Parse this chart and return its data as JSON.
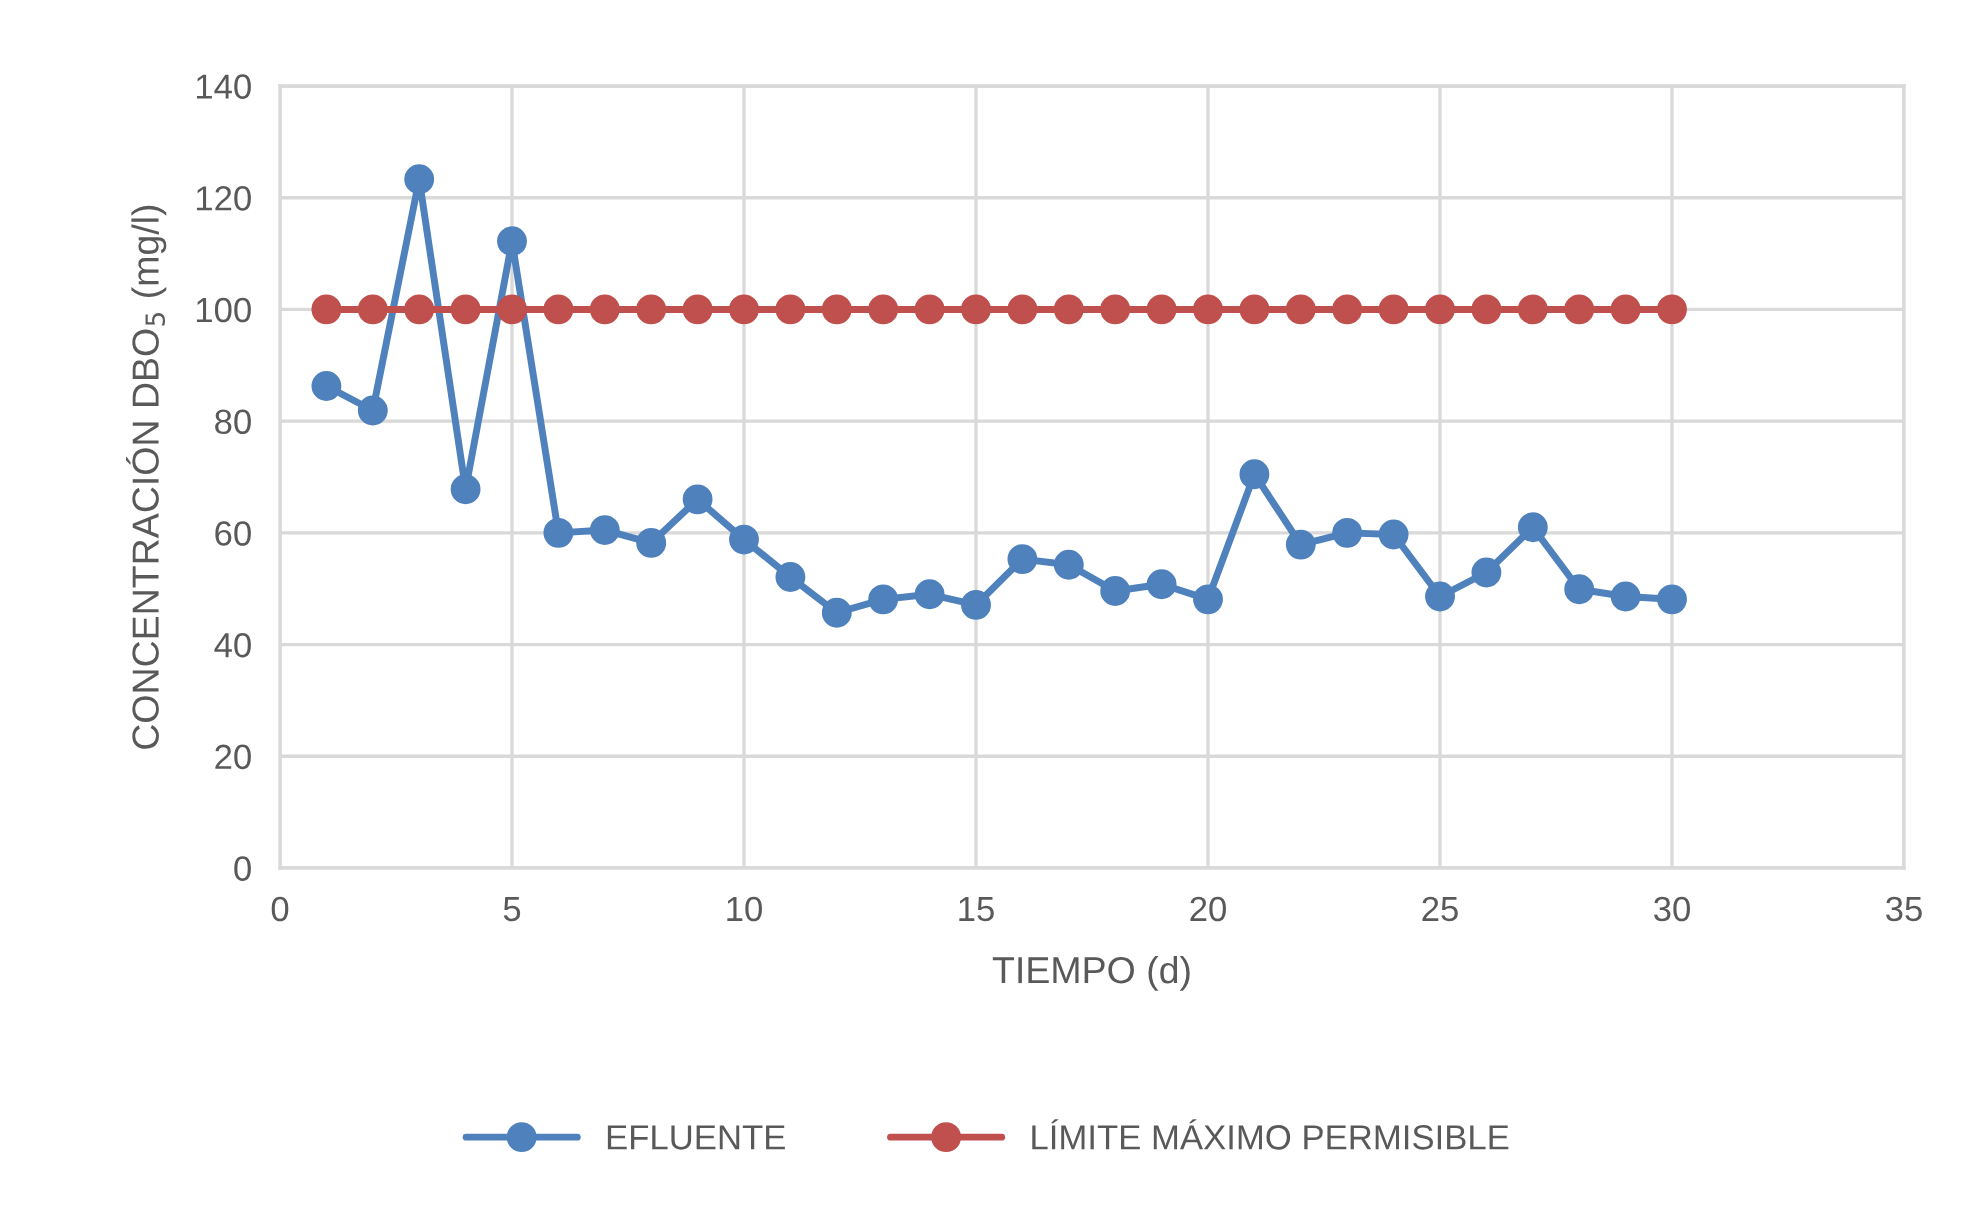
{
  "chart_data": {
    "type": "line",
    "xlabel": "TIEMPO (d)",
    "ylabel": "CONCENTRACIÓN DBO$_{5}$ (mg/l)",
    "x": [
      1,
      2,
      3,
      4,
      5,
      6,
      7,
      8,
      9,
      10,
      11,
      12,
      13,
      14,
      15,
      16,
      17,
      18,
      19,
      20,
      21,
      22,
      23,
      24,
      25,
      26,
      27,
      28,
      29,
      30
    ],
    "series": [
      {
        "name": "EFLUENTE",
        "color": "#4f81bd",
        "values": [
          86.3,
          81.9,
          123.3,
          67.8,
          112.2,
          60.0,
          60.5,
          58.2,
          66.0,
          58.8,
          52.1,
          45.7,
          48.1,
          49.0,
          47.1,
          55.3,
          54.3,
          49.6,
          50.8,
          48.1,
          70.5,
          57.9,
          60.0,
          59.7,
          48.6,
          52.9,
          61.0,
          49.9,
          48.6,
          48.1
        ]
      },
      {
        "name": "LÍMITE MÁXIMO PERMISIBLE",
        "color": "#c0504d",
        "values": [
          100,
          100,
          100,
          100,
          100,
          100,
          100,
          100,
          100,
          100,
          100,
          100,
          100,
          100,
          100,
          100,
          100,
          100,
          100,
          100,
          100,
          100,
          100,
          100,
          100,
          100,
          100,
          100,
          100,
          100
        ]
      }
    ],
    "xlim": [
      0,
      35
    ],
    "xticks": [
      0,
      5,
      10,
      15,
      20,
      25,
      30,
      35
    ],
    "ylim": [
      0,
      140
    ],
    "yticks": [
      0,
      20,
      40,
      60,
      80,
      100,
      120,
      140
    ],
    "grid": true,
    "legend": "bottom",
    "marker": "circle",
    "line_style": "solid"
  }
}
